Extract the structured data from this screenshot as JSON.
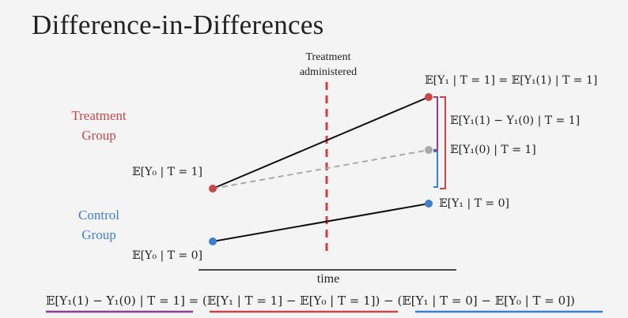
{
  "title": "Difference-in-Differences",
  "treatment_note": {
    "line1": "Treatment",
    "line2": "administered"
  },
  "groups": {
    "treatment": {
      "line1": "Treatment",
      "line2": "Group",
      "color": "#c8484a"
    },
    "control": {
      "line1": "Control",
      "line2": "Group",
      "color": "#3d7fcf"
    }
  },
  "labels": {
    "treat_pre": "𝔼[Y₀ | T = 1]",
    "control_pre": "𝔼[Y₀ | T = 0]",
    "treat_post": "𝔼[Y₁ | T = 1] = 𝔼[Y₁(1) | T = 1]",
    "effect": "𝔼[Y₁(1) − Y₁(0) | T = 1]",
    "counterfactual": "𝔼[Y₁(0) | T = 1]",
    "control_post": "𝔼[Y₁ | T = 0]"
  },
  "axis": {
    "xlabel": "time"
  },
  "equation": {
    "lhs": "𝔼[Y₁(1) − Y₁(0) | T = 1]",
    "equals": " = ",
    "term1": "(𝔼[Y₁ | T = 1] − 𝔼[Y₀ | T = 1])",
    "minus": " − ",
    "term2": "(𝔼[Y₁ | T = 0] − 𝔼[Y₀ | T = 0])",
    "colors": {
      "lhs": "#8a3f8f",
      "term1": "#c8484a",
      "term2": "#3d7fcf"
    }
  },
  "colors": {
    "treatment_point": "#c8484a",
    "control_point": "#3d7fcf",
    "counterfactual_point": "#a9a9a9",
    "effect_bracket": "#8a3f8f",
    "vline": "#d0403f"
  }
}
